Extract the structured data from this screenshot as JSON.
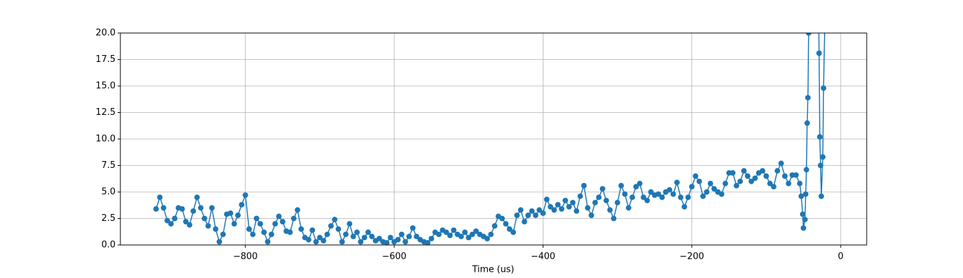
{
  "chart_data": {
    "type": "line",
    "x_label": "Time (us)",
    "color": "#1f77b4",
    "grid": true,
    "x": [
      -920,
      -915,
      -910,
      -905,
      -900,
      -895,
      -890,
      -885,
      -880,
      -875,
      -870,
      -865,
      -860,
      -855,
      -850,
      -845,
      -840,
      -835,
      -830,
      -825,
      -820,
      -815,
      -810,
      -805,
      -800,
      -795,
      -790,
      -785,
      -780,
      -775,
      -770,
      -765,
      -760,
      -755,
      -750,
      -745,
      -740,
      -735,
      -730,
      -725,
      -720,
      -715,
      -710,
      -705,
      -700,
      -695,
      -690,
      -685,
      -680,
      -675,
      -670,
      -665,
      -660,
      -655,
      -650,
      -645,
      -640,
      -635,
      -630,
      -625,
      -620,
      -615,
      -610,
      -605,
      -600,
      -595,
      -590,
      -585,
      -580,
      -575,
      -570,
      -565,
      -560,
      -555,
      -550,
      -545,
      -540,
      -535,
      -530,
      -525,
      -520,
      -515,
      -510,
      -505,
      -500,
      -495,
      -490,
      -485,
      -480,
      -475,
      -470,
      -465,
      -460,
      -455,
      -450,
      -445,
      -440,
      -435,
      -430,
      -425,
      -420,
      -415,
      -410,
      -405,
      -400,
      -395,
      -390,
      -385,
      -380,
      -375,
      -370,
      -365,
      -360,
      -355,
      -350,
      -345,
      -340,
      -335,
      -330,
      -325,
      -320,
      -315,
      -310,
      -305,
      -300,
      -295,
      -290,
      -285,
      -280,
      -275,
      -270,
      -265,
      -260,
      -255,
      -250,
      -245,
      -240,
      -235,
      -230,
      -225,
      -220,
      -215,
      -210,
      -205,
      -200,
      -195,
      -190,
      -185,
      -180,
      -175,
      -170,
      -165,
      -160,
      -155,
      -150,
      -145,
      -140,
      -135,
      -130,
      -125,
      -120,
      -115,
      -110,
      -105,
      -100,
      -95,
      -90,
      -85,
      -80,
      -75,
      -70,
      -65,
      -60,
      -55,
      -53,
      -51,
      -50,
      -48,
      -47,
      -46,
      -45,
      -44,
      -43,
      -42,
      -30,
      -29,
      -28,
      -27,
      -26,
      -24,
      -23,
      -21
    ],
    "values": [
      3.4,
      4.5,
      3.5,
      2.3,
      2.0,
      2.5,
      3.5,
      3.4,
      2.2,
      1.9,
      3.2,
      4.5,
      3.5,
      2.5,
      1.8,
      3.5,
      1.5,
      0.3,
      1.0,
      2.9,
      3.0,
      2.0,
      2.8,
      3.8,
      4.7,
      1.5,
      1.0,
      2.5,
      2.0,
      1.2,
      0.3,
      1.0,
      2.0,
      2.7,
      2.2,
      1.3,
      1.2,
      2.5,
      3.3,
      1.5,
      0.7,
      0.5,
      1.4,
      0.3,
      0.7,
      0.4,
      1.0,
      1.8,
      2.4,
      1.5,
      0.3,
      1.0,
      2.0,
      0.8,
      1.2,
      0.3,
      0.7,
      1.2,
      0.8,
      0.4,
      0.6,
      0.3,
      0.2,
      0.7,
      0.3,
      0.5,
      1.0,
      0.3,
      0.8,
      1.6,
      0.8,
      0.5,
      0.3,
      0.2,
      0.6,
      1.2,
      1.0,
      1.4,
      1.2,
      0.9,
      1.4,
      1.0,
      0.8,
      1.2,
      0.7,
      1.0,
      1.3,
      1.0,
      0.8,
      0.6,
      1.0,
      1.8,
      2.7,
      2.5,
      2.0,
      1.5,
      1.2,
      2.8,
      3.3,
      2.2,
      2.8,
      3.2,
      2.8,
      3.3,
      3.0,
      4.3,
      3.6,
      3.3,
      3.8,
      3.4,
      4.2,
      3.6,
      4.0,
      3.2,
      4.6,
      5.6,
      3.5,
      2.8,
      4.0,
      4.5,
      5.3,
      4.2,
      3.3,
      2.5,
      4.0,
      5.6,
      4.8,
      3.5,
      4.5,
      5.5,
      5.8,
      4.5,
      4.2,
      5.0,
      4.7,
      4.8,
      4.5,
      5.0,
      5.2,
      4.8,
      5.9,
      4.5,
      3.6,
      4.5,
      5.5,
      6.5,
      6.0,
      4.6,
      5.0,
      5.8,
      5.3,
      5.0,
      4.8,
      5.8,
      6.8,
      6.8,
      5.6,
      6.0,
      7.0,
      6.5,
      6.0,
      6.3,
      6.8,
      7.0,
      6.5,
      5.8,
      5.5,
      7.0,
      7.7,
      6.5,
      5.8,
      6.6,
      6.6,
      5.8,
      4.6,
      2.9,
      1.6,
      2.4,
      4.8,
      7.1,
      11.5,
      13.9,
      20.0,
      22.0,
      24.0,
      18.1,
      10.2,
      7.5,
      4.6,
      8.3,
      14.8,
      22.0
    ],
    "xlim": [
      -968,
      35
    ],
    "xticks": [
      {
        "value": -800,
        "label": "−800"
      },
      {
        "value": -600,
        "label": "−600"
      },
      {
        "value": -400,
        "label": "−400"
      },
      {
        "value": -200,
        "label": "−200"
      },
      0
    ],
    "ylim": [
      0,
      20
    ],
    "yticks": [
      {
        "value": 0,
        "label": "0.0"
      },
      {
        "value": 2.5,
        "label": "2.5"
      },
      {
        "value": 5,
        "label": "5.0"
      },
      {
        "value": 7.5,
        "label": "7.5"
      },
      {
        "value": 10,
        "label": "10.0"
      },
      {
        "value": 12.5,
        "label": "12.5"
      },
      {
        "value": 15,
        "label": "15.0"
      },
      {
        "value": 17.5,
        "label": "17.5"
      },
      {
        "value": 20,
        "label": "20.0"
      }
    ]
  }
}
